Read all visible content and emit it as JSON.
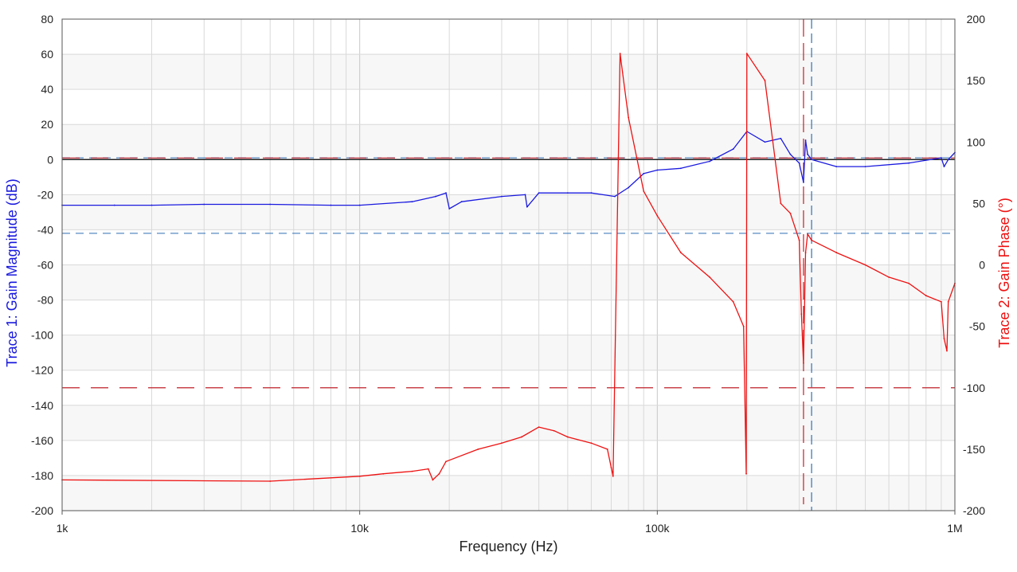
{
  "chart_data": {
    "type": "line",
    "title": "",
    "xlabel": "Frequency (Hz)",
    "ylabel_left": "Trace 1: Gain Magnitude (dB)",
    "ylabel_right": "Trace 2: Gain Phase (°)",
    "x_scale": "log",
    "xlim": [
      1000,
      1000000
    ],
    "ylim_left": [
      -200,
      80
    ],
    "ylim_right": [
      -200,
      200
    ],
    "x_ticks": [
      {
        "value": 1000,
        "label": "1k"
      },
      {
        "value": 10000,
        "label": "10k"
      },
      {
        "value": 100000,
        "label": "100k"
      },
      {
        "value": 1000000,
        "label": "1M"
      }
    ],
    "y_left_ticks": [
      "80",
      "60",
      "40",
      "20",
      "0",
      "-20",
      "-40",
      "-60",
      "-80",
      "-100",
      "-120",
      "-140",
      "-160",
      "-180",
      "-200"
    ],
    "y_right_ticks": [
      "200",
      "150",
      "100",
      "50",
      "0",
      "-50",
      "-100",
      "-150",
      "-200"
    ],
    "grid": true,
    "colors": {
      "magnitude": "#1a1adf",
      "phase": "#ee1111",
      "marker_blue": "#2f6fb5",
      "marker_red": "#c0202a",
      "band": "#f7f7f7",
      "grid": "#d9d9d9"
    },
    "reference_lines": {
      "magnitude_levels_db": [
        1,
        -42
      ],
      "magnitude_zero_db": 0,
      "phase_levels_deg": [
        -100,
        87
      ],
      "blue_cursor_hz": 330000,
      "red_cursor_hz": 310000
    },
    "series": [
      {
        "axis": "left",
        "color": "#1a1adf",
        "x": [
          1000,
          1500,
          2000,
          3000,
          5000,
          8000,
          10000,
          15000,
          18000,
          19500,
          20000,
          22000,
          30000,
          36000,
          36500,
          40000,
          50000,
          60000,
          72000,
          80000,
          90000,
          100000,
          120000,
          150000,
          180000,
          200000,
          230000,
          260000,
          280000,
          300000,
          310000,
          315000,
          320000,
          330000,
          400000,
          500000,
          700000,
          900000,
          920000,
          950000,
          1000000
        ],
        "y": [
          -26,
          -26,
          -26,
          -25.5,
          -25.5,
          -26,
          -26,
          -24,
          -21,
          -19,
          -28,
          -24,
          -21,
          -20,
          -27,
          -19,
          -19,
          -19,
          -21,
          -16,
          -8,
          -6,
          -5,
          -1,
          6,
          16,
          10,
          12,
          3,
          -2,
          -13,
          11,
          3,
          0,
          -4,
          -4,
          -2,
          1,
          -4,
          0,
          4
        ]
      },
      {
        "axis": "right",
        "color": "#ee1111",
        "x": [
          1000,
          5000,
          10000,
          12000,
          15000,
          17000,
          17600,
          18500,
          19500,
          25000,
          30000,
          35000,
          40000,
          45000,
          50000,
          60000,
          68000,
          70000,
          71000,
          75000,
          80000,
          90000,
          100000,
          120000,
          150000,
          180000,
          195000,
          199000,
          200000,
          230000,
          260000,
          280000,
          300000,
          305000,
          310000,
          315000,
          320000,
          330000,
          400000,
          500000,
          600000,
          700000,
          800000,
          900000,
          920000,
          940000,
          950000,
          1000000
        ],
        "y": [
          -175,
          -176,
          -172,
          -170,
          -168,
          -166,
          -175,
          -170,
          -160,
          -150,
          -145,
          -140,
          -132,
          -135,
          -140,
          -145,
          -150,
          -165,
          -172,
          172,
          120,
          60,
          40,
          10,
          -10,
          -30,
          -50,
          -170,
          172,
          150,
          50,
          42,
          20,
          -40,
          -80,
          10,
          25,
          20,
          10,
          0,
          -10,
          -15,
          -25,
          -30,
          -60,
          -70,
          -30,
          -15
        ]
      }
    ]
  }
}
